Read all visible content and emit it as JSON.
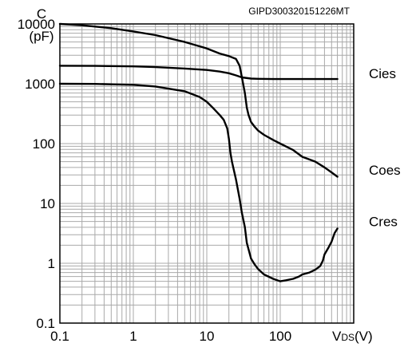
{
  "figure_code": "GIPD300320151226MT",
  "chart_data": {
    "type": "line",
    "x_scale": "log",
    "y_scale": "log",
    "xlim": [
      0.1,
      1000
    ],
    "ylim": [
      0.1,
      10000
    ],
    "xlabel": "VDS(V)",
    "xlabel_main": "V",
    "xlabel_sub": "DS",
    "xlabel_unit": "(V)",
    "ylabel": "C (pF)",
    "ylabel_line1": "C",
    "ylabel_line2": "(pF)",
    "x_ticks": [
      {
        "value": 0.1,
        "label": "0.1"
      },
      {
        "value": 1,
        "label": "1"
      },
      {
        "value": 10,
        "label": "10"
      },
      {
        "value": 100,
        "label": "100"
      }
    ],
    "y_ticks": [
      {
        "value": 0.1,
        "label": "0.1"
      },
      {
        "value": 1,
        "label": "1"
      },
      {
        "value": 10,
        "label": "10"
      },
      {
        "value": 100,
        "label": "100"
      },
      {
        "value": 1000,
        "label": "1000"
      },
      {
        "value": 10000,
        "label": "10000"
      }
    ],
    "grid": true,
    "series": [
      {
        "name": "Cies",
        "x": [
          0.1,
          0.3,
          1,
          2,
          5,
          10,
          15,
          20,
          25,
          30,
          40,
          50,
          80,
          100,
          200,
          500,
          600
        ],
        "y": [
          2000,
          1990,
          1950,
          1900,
          1800,
          1700,
          1600,
          1500,
          1380,
          1280,
          1220,
          1210,
          1200,
          1200,
          1200,
          1200,
          1200
        ]
      },
      {
        "name": "Coes",
        "x": [
          0.1,
          0.2,
          0.5,
          1,
          2,
          5,
          10,
          15,
          20,
          25,
          28,
          30,
          33,
          35,
          37,
          40,
          45,
          50,
          60,
          80,
          100,
          150,
          200,
          300,
          400,
          500,
          600
        ],
        "y": [
          10000,
          9500,
          8500,
          7500,
          6500,
          5000,
          3900,
          3200,
          2900,
          2600,
          2000,
          1300,
          700,
          400,
          300,
          230,
          190,
          165,
          140,
          115,
          100,
          78,
          60,
          50,
          40,
          33,
          28
        ]
      },
      {
        "name": "Cres",
        "x": [
          0.1,
          0.3,
          1,
          2,
          5,
          8,
          10,
          12,
          15,
          17,
          19,
          20,
          21,
          22,
          25,
          28,
          30,
          33,
          35,
          40,
          45,
          50,
          60,
          80,
          100,
          120,
          150,
          180,
          200,
          250,
          300,
          350,
          380,
          400,
          450,
          500,
          550,
          600
        ],
        "y": [
          1000,
          995,
          960,
          900,
          750,
          600,
          500,
          400,
          300,
          250,
          180,
          120,
          70,
          50,
          25,
          12,
          7,
          4,
          2.2,
          1.2,
          0.95,
          0.8,
          0.65,
          0.55,
          0.5,
          0.52,
          0.55,
          0.6,
          0.65,
          0.7,
          0.78,
          0.9,
          1.1,
          1.4,
          1.8,
          2.3,
          3.2,
          3.8
        ]
      }
    ]
  }
}
